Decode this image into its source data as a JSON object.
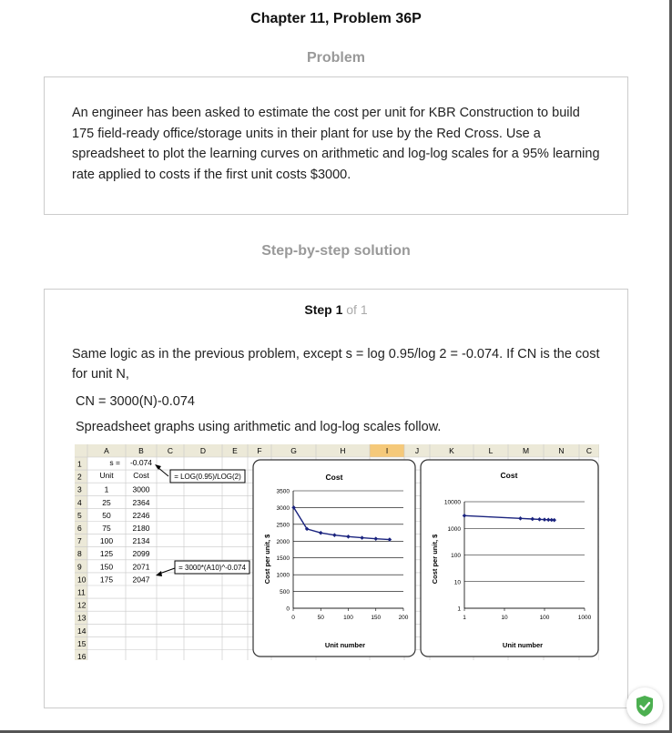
{
  "page": {
    "title": "Chapter 11, Problem 36P",
    "problem_heading": "Problem",
    "problem_text": "An engineer has been asked to estimate the cost per unit for KBR Construction to build 175 field-ready office/storage units in their plant for use by the Red Cross. Use a spreadsheet to plot the learning curves on arithmetic and log-log scales for a 95% learning rate applied to costs if the first unit costs $3000.",
    "solution_heading": "Step-by-step solution",
    "step_label": "Step 1",
    "step_of": "of 1",
    "solution_line1": "Same logic as in the previous problem, except s = log 0.95/log 2 = -0.074. If CN is the cost for unit N,",
    "solution_line2": "CN = 3000(N)-0.074",
    "solution_line3": "Spreadsheet graphs using arithmetic and log-log scales follow."
  },
  "spreadsheet": {
    "columns": [
      "A",
      "B",
      "C",
      "D",
      "E",
      "F",
      "G",
      "H",
      "I",
      "J",
      "K",
      "L",
      "M",
      "N",
      "C"
    ],
    "row_numbers": [
      "1",
      "2",
      "3",
      "4",
      "5",
      "6",
      "7",
      "8",
      "9",
      "10",
      "11",
      "12",
      "13",
      "14",
      "15",
      "16"
    ],
    "row1": {
      "a": "s =",
      "b": "-0.074"
    },
    "headers": {
      "a": "Unit",
      "b": "Cost"
    },
    "units": [
      "1",
      "25",
      "50",
      "75",
      "100",
      "125",
      "150",
      "175"
    ],
    "costs": [
      "3000",
      "2364",
      "2246",
      "2180",
      "2134",
      "2099",
      "2071",
      "2047"
    ],
    "callout1": "= LOG(0.95)/LOG(2)",
    "callout2": "= 3000*(A10)^-0.074"
  },
  "chart_data": [
    {
      "type": "line",
      "title": "Cost",
      "xlabel": "Unit number",
      "ylabel": "Cost per unit, $",
      "xlim": [
        0,
        200
      ],
      "ylim": [
        0,
        3500
      ],
      "x_ticks": [
        "0",
        "50",
        "100",
        "150",
        "200"
      ],
      "y_ticks": [
        "0",
        "500",
        "1000",
        "1500",
        "2000",
        "2500",
        "3000",
        "3500"
      ],
      "grid": true,
      "color": "#1a237e",
      "series": [
        {
          "x": [
            1,
            25,
            50,
            75,
            100,
            125,
            150,
            175
          ],
          "values": [
            3000,
            2364,
            2246,
            2180,
            2134,
            2099,
            2071,
            2047
          ]
        }
      ]
    },
    {
      "type": "line",
      "title": "Cost",
      "xlabel": "Unit number",
      "ylabel": "Cost per unit, $",
      "xscale": "log",
      "yscale": "log",
      "xlim": [
        1,
        1000
      ],
      "ylim": [
        1,
        10000
      ],
      "x_ticks": [
        "1",
        "10",
        "100",
        "1000"
      ],
      "y_ticks": [
        "1",
        "10",
        "100",
        "1000",
        "10000"
      ],
      "grid": true,
      "color": "#1a237e",
      "series": [
        {
          "x": [
            1,
            25,
            50,
            75,
            100,
            125,
            150,
            175
          ],
          "values": [
            3000,
            2364,
            2246,
            2180,
            2134,
            2099,
            2071,
            2047
          ]
        }
      ]
    }
  ]
}
